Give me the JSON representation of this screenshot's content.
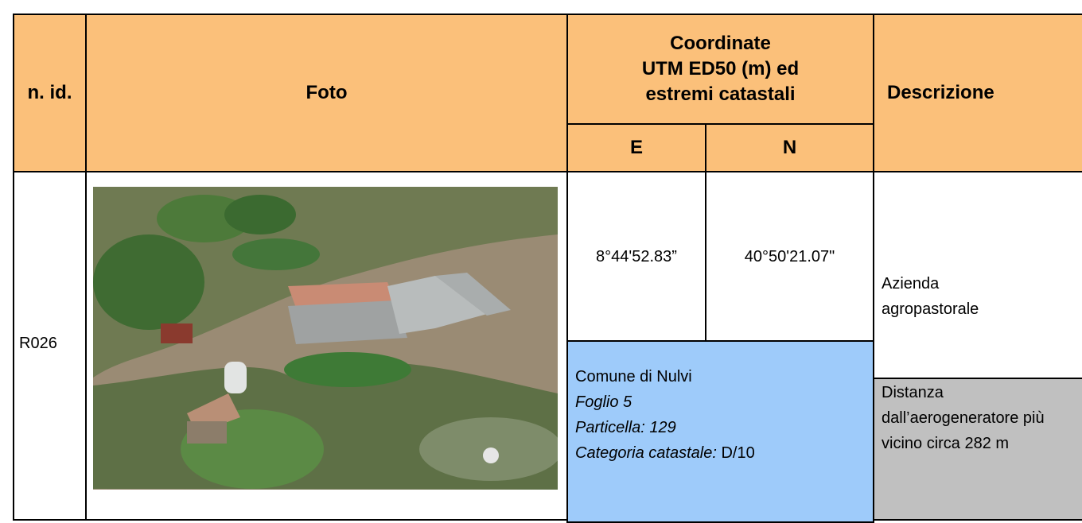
{
  "table": {
    "header": {
      "id": "n. id.",
      "photo": "Foto",
      "coords": [
        "Coordinate",
        "UTM ED50 (m) ed",
        "estremi catastali"
      ],
      "e": "E",
      "n": "N",
      "description": "Descrizione"
    },
    "rows": [
      {
        "id": "R026",
        "e": "8°44'52.83”",
        "n": "40°50'21.07\"",
        "cadastre": {
          "comune": "Comune di Nulvi",
          "foglio": "Foglio 5",
          "particella": "Particella: 129",
          "categoria_label": "Categoria catastale:",
          "categoria_value": "D/10"
        },
        "description": "Azienda agropastorale",
        "distance": "Distanza dall’aerogeneratore più vicino circa 282 m"
      }
    ]
  }
}
